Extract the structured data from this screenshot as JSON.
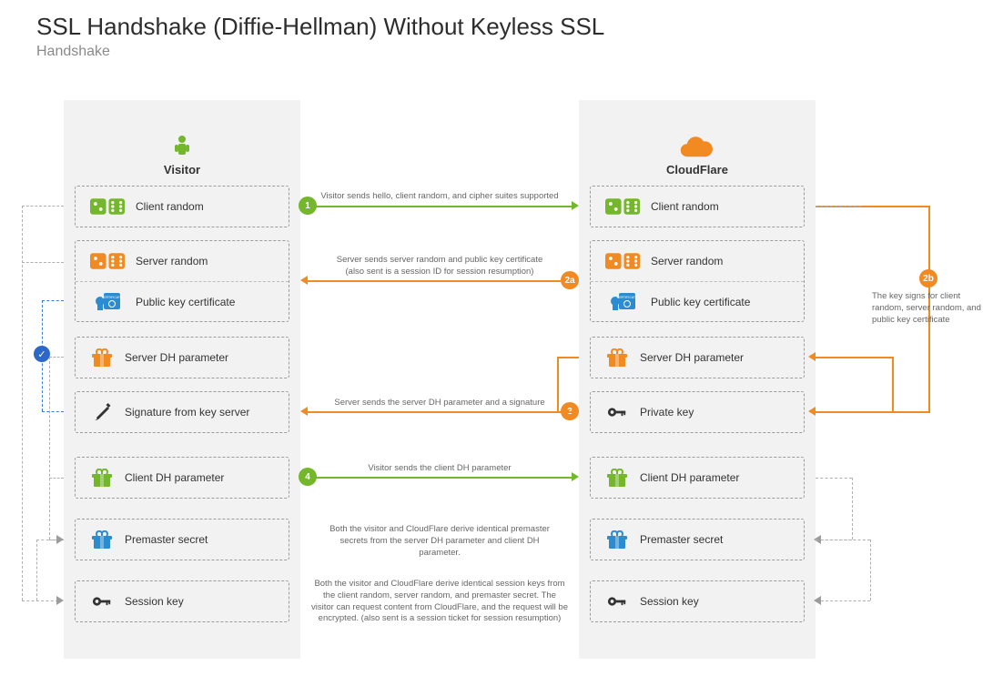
{
  "title": "SSL Handshake (Diffie-Hellman) Without Keyless SSL",
  "subtitle": "Handshake",
  "colors": {
    "green": "#74b72c",
    "orange": "#f28a22",
    "blue": "#2d8ccf",
    "blueDark": "#2d67c8",
    "gray": "#9c9c9c",
    "bg_col": "#f2f2f2",
    "text": "#333333"
  },
  "columns": {
    "visitor": {
      "label": "Visitor",
      "icon": "person-icon",
      "icon_color": "#74b72c"
    },
    "cloudflare": {
      "label": "CloudFlare",
      "icon": "cloud-icon",
      "icon_color": "#f28a22"
    }
  },
  "visitor_boxes": [
    {
      "rows": [
        {
          "icon": "dice-icon",
          "color": "#74b72c",
          "label": "Client random"
        }
      ]
    },
    {
      "rows": [
        {
          "icon": "dice-icon",
          "color": "#f28a22",
          "label": "Server random"
        },
        {
          "icon": "cert-icon",
          "color": "#2d8ccf",
          "label": "Public key certificate"
        }
      ]
    },
    {
      "rows": [
        {
          "icon": "gift-icon",
          "color": "#f28a22",
          "label": "Server DH parameter"
        }
      ]
    },
    {
      "rows": [
        {
          "icon": "pencil-icon",
          "color": "#333333",
          "label": "Signature from key server"
        }
      ]
    },
    {
      "rows": [
        {
          "icon": "gift-icon",
          "color": "#74b72c",
          "label": "Client DH parameter"
        }
      ]
    },
    {
      "rows": [
        {
          "icon": "gift-icon",
          "color": "#2d8ccf",
          "label": "Premaster secret"
        }
      ]
    },
    {
      "rows": [
        {
          "icon": "key-icon",
          "color": "#333333",
          "label": "Session key"
        }
      ]
    }
  ],
  "cloudflare_boxes": [
    {
      "rows": [
        {
          "icon": "dice-icon",
          "color": "#74b72c",
          "label": "Client random"
        }
      ]
    },
    {
      "rows": [
        {
          "icon": "dice-icon",
          "color": "#f28a22",
          "label": "Server random"
        },
        {
          "icon": "cert-icon",
          "color": "#2d8ccf",
          "label": "Public key certificate"
        }
      ]
    },
    {
      "rows": [
        {
          "icon": "gift-icon",
          "color": "#f28a22",
          "label": "Server DH parameter"
        }
      ]
    },
    {
      "rows": [
        {
          "icon": "key-icon",
          "color": "#333333",
          "label": "Private key"
        }
      ]
    },
    {
      "rows": [
        {
          "icon": "gift-icon",
          "color": "#74b72c",
          "label": "Client DH parameter"
        }
      ]
    },
    {
      "rows": [
        {
          "icon": "gift-icon",
          "color": "#2d8ccf",
          "label": "Premaster secret"
        }
      ]
    },
    {
      "rows": [
        {
          "icon": "key-icon",
          "color": "#333333",
          "label": "Session key"
        }
      ]
    }
  ],
  "box_tops": [
    94,
    154,
    260,
    320,
    392,
    460,
    528
  ],
  "steps": {
    "s1": {
      "num": "1",
      "color": "green",
      "dir": "r",
      "text": "Visitor sends hello, client random, and cipher suites supported"
    },
    "s2a": {
      "num": "2a",
      "color": "orange",
      "dir": "l",
      "text": "Server sends server random and public key certificate",
      "sub": "(also sent is a session ID for session resumption)"
    },
    "s2b": {
      "num": "2b",
      "color": "orange",
      "text": "The key signs for client random, server random, and public key certificate"
    },
    "s3": {
      "num": "3",
      "color": "orange",
      "dir": "l",
      "text": "Server sends the server DH parameter and a signature"
    },
    "s4": {
      "num": "4",
      "color": "green",
      "dir": "r",
      "text": "Visitor sends the client DH parameter"
    },
    "note5": "Both the visitor and CloudFlare derive identical premaster secrets from the server DH parameter and client DH parameter.",
    "note6": "Both the visitor and CloudFlare derive identical session keys from the client random, server random, and premaster secret. The visitor can request content from CloudFlare, and the request will be encrypted. (also sent is a session ticket for session resumption)"
  }
}
